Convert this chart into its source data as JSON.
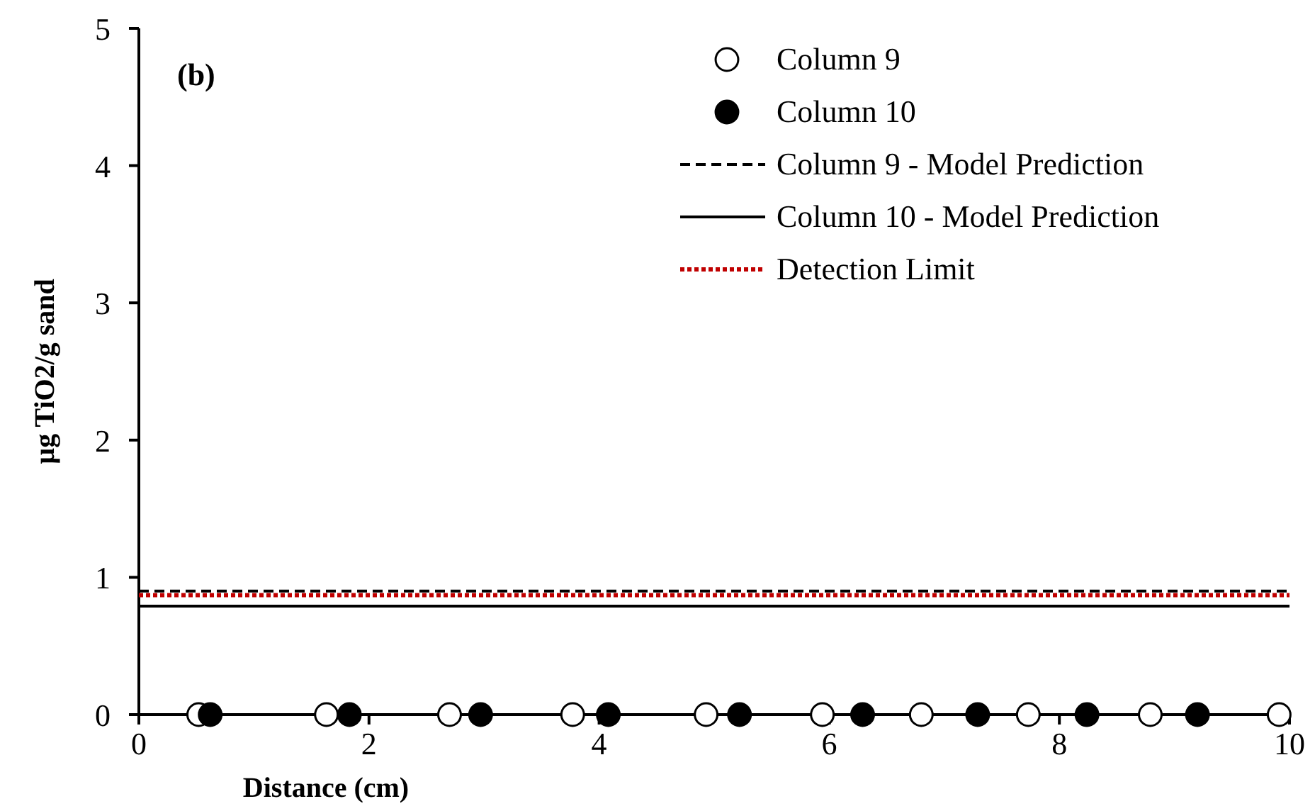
{
  "chart_data": {
    "type": "scatter",
    "xlabel": "Distance (cm)",
    "ylabel": "µg TiO2/g sand",
    "annotations": [
      "(b)"
    ],
    "xlim": [
      0,
      10
    ],
    "xticks": [
      0,
      2,
      4,
      6,
      8,
      10
    ],
    "ylim": [
      0,
      5
    ],
    "yticks": [
      0,
      1,
      2,
      3,
      4,
      5
    ],
    "grid": false,
    "legend": "top right",
    "series": [
      {
        "name": "Column 9",
        "marker": "circle",
        "color": "#ffffff",
        "x": [
          0.52,
          1.63,
          2.7,
          3.77,
          4.93,
          5.94,
          6.8,
          7.73,
          8.79,
          9.91
        ],
        "values": [
          0,
          0,
          0,
          0,
          0,
          0,
          0,
          0,
          0,
          0
        ]
      },
      {
        "name": "Column 10",
        "marker": "circle",
        "color": "#000000",
        "x": [
          0.62,
          1.83,
          2.97,
          4.08,
          5.22,
          6.29,
          7.29,
          8.24,
          9.2
        ],
        "values": [
          0,
          0,
          0,
          0,
          0,
          0,
          0,
          0,
          0
        ]
      },
      {
        "name": "Column 9 - Model Prediction",
        "type": "line",
        "line_style": "dashed",
        "color": "#000000",
        "x": [
          0,
          10
        ],
        "values": [
          0.9,
          0.9
        ]
      },
      {
        "name": "Column 10 - Model Prediction",
        "type": "line",
        "line_style": "solid",
        "color": "#000000",
        "x": [
          0,
          10
        ],
        "values": [
          0.79,
          0.79
        ]
      },
      {
        "name": "Detection Limit",
        "type": "line",
        "line_style": "dotted",
        "color": "#c00000",
        "x": [
          0,
          10
        ],
        "values": [
          0.87,
          0.87
        ]
      }
    ]
  }
}
